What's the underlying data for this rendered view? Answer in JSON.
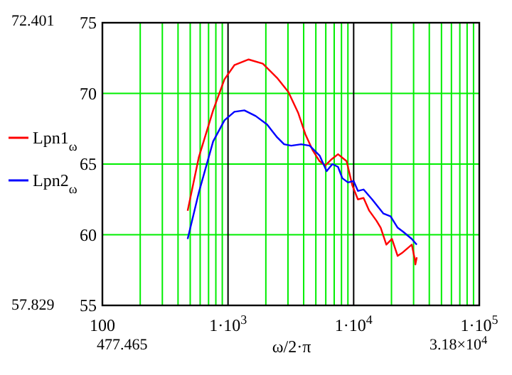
{
  "chart_data": {
    "type": "line",
    "log": "x",
    "grid": true,
    "legend": "left",
    "xlabel": "ω/2·π",
    "xlim": [
      100,
      100000
    ],
    "ylim": [
      55,
      75
    ],
    "xticks": [
      100,
      {
        "value": 1000,
        "label": "1·10$^{3}$"
      },
      {
        "value": 10000,
        "label": "1·10$^{4}$"
      },
      {
        "value": 100000,
        "label": "1·10$^{5}$"
      }
    ],
    "yticks": [
      55,
      60,
      65,
      70,
      75
    ],
    "annotations": [
      "72.401",
      "57.829",
      "477.465",
      "3.18×10$^{4}$"
    ],
    "series": [
      {
        "name": "Lpn1$_{ω}$",
        "color": "#ff0000",
        "x": [
          477,
          586,
          761,
          937,
          1124,
          1459,
          1892,
          2455,
          3022,
          3625,
          4130,
          4702,
          5358,
          5941,
          6592,
          7509,
          8790,
          9750,
          10810,
          11990,
          13300,
          15170,
          16410,
          18200,
          20180,
          22390,
          24210,
          29040,
          30600,
          31000,
          31800
        ],
        "values": [
          61.7,
          65.5,
          68.8,
          71,
          72,
          72.4,
          72.1,
          71.1,
          70.1,
          68.6,
          67.1,
          66,
          65.2,
          64.9,
          65.3,
          65.7,
          65.2,
          63.5,
          62.5,
          62.6,
          61.7,
          61,
          60.5,
          59.3,
          59.7,
          58.5,
          58.7,
          59.3,
          58.3,
          57.9,
          58.4
        ]
      },
      {
        "name": "Lpn2$_{ω}$",
        "color": "#0000ff",
        "x": [
          477,
          586,
          761,
          937,
          1124,
          1349,
          1661,
          2045,
          2455,
          2795,
          3185,
          3819,
          4467,
          5358,
          6095,
          6770,
          7509,
          8121,
          9016,
          10000,
          10810,
          11990,
          14030,
          17260,
          19670,
          22390,
          24840,
          29040,
          31800
        ],
        "values": [
          59.7,
          63,
          66.6,
          68.1,
          68.7,
          68.8,
          68.4,
          67.8,
          66.9,
          66.4,
          66.3,
          66.4,
          66.3,
          65.6,
          64.5,
          65,
          64.8,
          64,
          63.7,
          63.8,
          63.1,
          63.2,
          62.5,
          61.5,
          61.3,
          60.5,
          60.2,
          59.7,
          59.3
        ]
      }
    ]
  }
}
